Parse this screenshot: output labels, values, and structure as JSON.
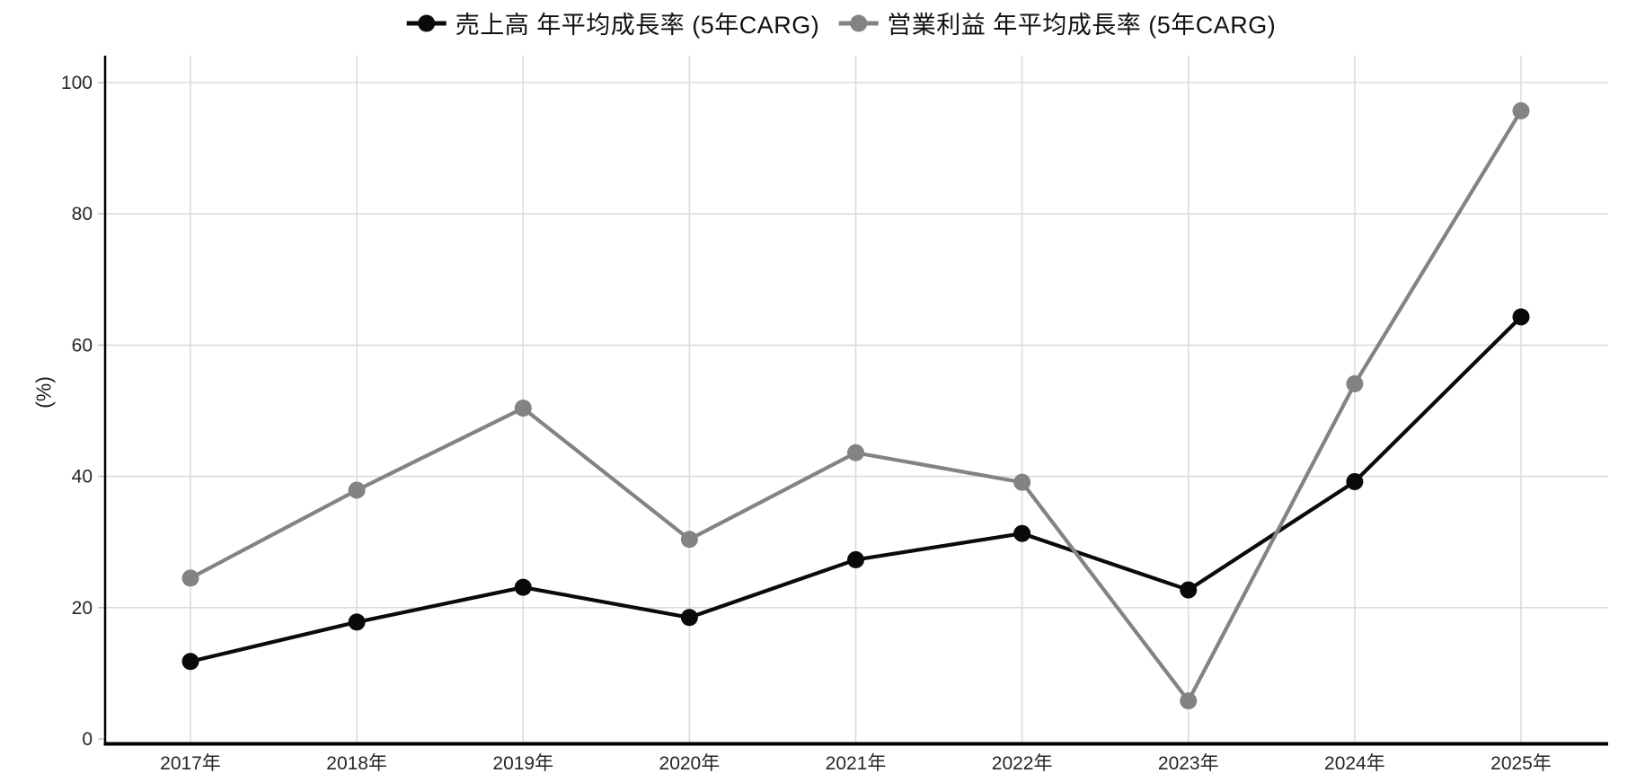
{
  "figure": {
    "background": "#ffffff"
  },
  "chart_data": {
    "type": "line",
    "title": "",
    "ylabel": "(%)",
    "xlabel": "",
    "categories": [
      "2017年",
      "2018年",
      "2019年",
      "2020年",
      "2021年",
      "2022年",
      "2023年",
      "2024年",
      "2025年"
    ],
    "series": [
      {
        "name": "売上高 年平均成長率 (5年CARG)",
        "color": "#0a0a0a",
        "marker": "circle",
        "values": [
          11.8,
          17.8,
          23.1,
          18.5,
          27.3,
          31.3,
          22.7,
          39.2,
          64.3
        ]
      },
      {
        "name": "営業利益 年平均成長率 (5年CARG)",
        "color": "#838383",
        "marker": "circle",
        "values": [
          24.5,
          37.9,
          50.4,
          30.4,
          43.6,
          39.1,
          5.8,
          54.1,
          95.7
        ]
      }
    ],
    "ylim": [
      0,
      100
    ],
    "yticks": [
      0,
      20,
      40,
      60,
      80,
      100
    ],
    "grid": true,
    "legend_position": "top",
    "colors": {
      "gridline": "#dcdcdc",
      "axis": "#000000",
      "tick_mark": "#c8c8c8",
      "tick_label": "#262626"
    }
  }
}
